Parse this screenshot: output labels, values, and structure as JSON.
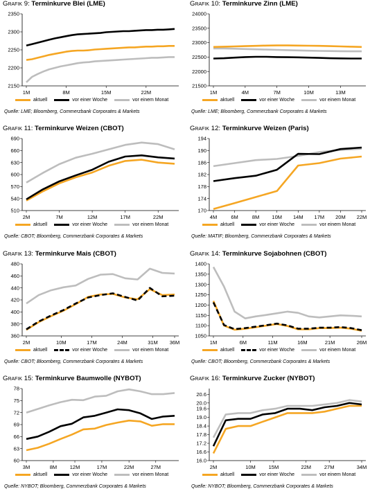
{
  "chart_data": [
    {
      "type": "line",
      "grafik_label": "Grafik 9:",
      "title": "Terminkurve Blei (LME)",
      "source": "Quelle: LME; Bloomberg, Commerzbank Corporates & Markets",
      "categories": [
        "1M",
        "2M",
        "3M",
        "4M",
        "5M",
        "6M",
        "7M",
        "8M",
        "9M",
        "10M",
        "11M",
        "12M",
        "13M",
        "14M",
        "15M",
        "16M",
        "17M",
        "18M",
        "19M",
        "20M",
        "21M",
        "22M",
        "23M",
        "24M",
        "25M",
        "26M",
        "27M"
      ],
      "xticks": [
        "1M",
        "8M",
        "15M",
        "22M"
      ],
      "ylim": [
        2150,
        2350
      ],
      "yticks": [
        2150,
        2200,
        2250,
        2300,
        2350
      ],
      "series": [
        {
          "name": "aktuell",
          "color": "#F5A623",
          "style": "solid",
          "values": [
            2222,
            2224,
            2228,
            2232,
            2236,
            2239,
            2242,
            2245,
            2247,
            2248,
            2248,
            2249,
            2251,
            2252,
            2253,
            2254,
            2255,
            2256,
            2257,
            2257,
            2258,
            2259,
            2259,
            2260,
            2260,
            2261,
            2261
          ]
        },
        {
          "name": "vor einer Woche",
          "color": "#000000",
          "style": "solid",
          "values": [
            2262,
            2266,
            2270,
            2274,
            2278,
            2282,
            2285,
            2288,
            2291,
            2293,
            2294,
            2295,
            2296,
            2297,
            2299,
            2300,
            2301,
            2302,
            2302,
            2303,
            2304,
            2305,
            2305,
            2306,
            2306,
            2307,
            2308
          ]
        },
        {
          "name": "vor einem Monat",
          "color": "#BDBDBD",
          "style": "solid",
          "values": [
            2160,
            2175,
            2183,
            2190,
            2196,
            2200,
            2204,
            2207,
            2210,
            2213,
            2215,
            2216,
            2218,
            2219,
            2220,
            2221,
            2222,
            2223,
            2224,
            2225,
            2226,
            2227,
            2228,
            2228,
            2229,
            2230,
            2230
          ]
        }
      ]
    },
    {
      "type": "line",
      "grafik_label": "Grafik 10:",
      "title": "Terminkurve Zinn (LME)",
      "source": "Quelle: LME; Bloomberg, Commerzbank Corporates & Markets",
      "categories": [
        "1M",
        "2M",
        "3M",
        "4M",
        "5M",
        "6M",
        "7M",
        "8M",
        "9M",
        "10M",
        "11M",
        "12M",
        "13M",
        "14M",
        "15M"
      ],
      "xticks": [
        "1M",
        "4M",
        "7M",
        "10M",
        "13M"
      ],
      "ylim": [
        21500,
        24000
      ],
      "yticks": [
        21500,
        22000,
        22500,
        23000,
        23500,
        24000
      ],
      "series": [
        {
          "name": "aktuell",
          "color": "#F5A623",
          "style": "solid",
          "values": [
            22850,
            22860,
            22870,
            22880,
            22890,
            22900,
            22905,
            22905,
            22900,
            22895,
            22890,
            22880,
            22870,
            22860,
            22850
          ]
        },
        {
          "name": "vor einer Woche",
          "color": "#000000",
          "style": "solid",
          "values": [
            22450,
            22460,
            22480,
            22500,
            22510,
            22510,
            22500,
            22495,
            22490,
            22480,
            22470,
            22460,
            22455,
            22450,
            22450
          ]
        },
        {
          "name": "vor einem Monat",
          "color": "#BDBDBD",
          "style": "solid",
          "values": [
            22800,
            22800,
            22790,
            22780,
            22770,
            22760,
            22750,
            22740,
            22730,
            22720,
            22715,
            22710,
            22705,
            22700,
            22700
          ]
        }
      ]
    },
    {
      "type": "line",
      "grafik_label": "Grafik 11:",
      "title": "Terminkurve Weizen (CBOT)",
      "source": "Quelle: CBOT; Bloomberg, Commerzbank Corporates & Markets",
      "categories": [
        "2M",
        "4.5M",
        "7M",
        "9.5M",
        "12M",
        "14.5M",
        "17M",
        "19.5M",
        "22M",
        "24.5M"
      ],
      "xticks": [
        "2M",
        "7M",
        "12M",
        "17M",
        "22M"
      ],
      "ylim": [
        510,
        690
      ],
      "yticks": [
        510,
        540,
        570,
        600,
        630,
        660,
        690
      ],
      "series": [
        {
          "name": "aktuell",
          "color": "#F5A623",
          "style": "solid",
          "values": [
            535,
            558,
            578,
            593,
            605,
            622,
            634,
            637,
            630,
            627
          ]
        },
        {
          "name": "vor einer Woche",
          "color": "#000000",
          "style": "solid",
          "values": [
            538,
            563,
            583,
            598,
            612,
            632,
            645,
            648,
            643,
            640
          ]
        },
        {
          "name": "vor einem Monat",
          "color": "#BDBDBD",
          "style": "solid",
          "values": [
            580,
            604,
            626,
            642,
            652,
            663,
            674,
            680,
            676,
            663
          ]
        }
      ]
    },
    {
      "type": "line",
      "grafik_label": "Grafik 12:",
      "title": "Terminkurve Weizen (Paris)",
      "source": "Quelle: MATIF; Bloomberg, Commerzbank Corporates & Markets",
      "categories": [
        "4M",
        "6M",
        "8M",
        "10M",
        "14M",
        "17M",
        "20M",
        "22M"
      ],
      "xticks": [
        "4M",
        "6M",
        "8M",
        "10M",
        "14M",
        "17M",
        "20M",
        "22M"
      ],
      "ylim": [
        170,
        194
      ],
      "yticks": [
        170,
        174,
        178,
        182,
        186,
        190,
        194
      ],
      "series": [
        {
          "name": "aktuell",
          "color": "#F5A623",
          "style": "solid",
          "values": [
            170.5,
            172.5,
            174.5,
            176.5,
            185.0,
            185.8,
            187.3,
            188.0
          ]
        },
        {
          "name": "vor einer Woche",
          "color": "#000000",
          "style": "solid",
          "values": [
            179.8,
            180.8,
            181.6,
            183.6,
            188.9,
            188.8,
            190.5,
            191.0
          ]
        },
        {
          "name": "vor einem Monat",
          "color": "#BDBDBD",
          "style": "solid",
          "values": [
            184.8,
            185.8,
            186.8,
            187.2,
            188.2,
            189.5,
            190.2,
            190.6
          ]
        }
      ]
    },
    {
      "type": "line",
      "grafik_label": "Grafik 13:",
      "title": "Terminkurve Mais (CBOT)",
      "source": "Quelle: CBOT; Bloomberg, Commerzbank Corporates & Markets",
      "categories": [
        "2M",
        "4.8M",
        "7.6M",
        "10.5M",
        "13.3M",
        "16.1M",
        "18.9M",
        "21.7M",
        "24.6M",
        "27.4M",
        "30.2M",
        "33M",
        "36M"
      ],
      "xticks": [
        "2M",
        "10M",
        "17M",
        "24M",
        "31M",
        "36M"
      ],
      "ylim": [
        360,
        480
      ],
      "yticks": [
        360,
        380,
        400,
        420,
        440,
        460,
        480
      ],
      "series": [
        {
          "name": "aktuell",
          "color": "#F5A623",
          "style": "solid",
          "values": [
            370,
            383,
            393,
            402,
            413,
            425,
            429,
            430,
            424,
            421,
            438,
            428,
            429
          ]
        },
        {
          "name": "vor einer Woche",
          "color": "#000000",
          "style": "dashed",
          "values": [
            371,
            384,
            394,
            403,
            414,
            424,
            428,
            431,
            425,
            419,
            440,
            426,
            427
          ]
        },
        {
          "name": "vor einem Monat",
          "color": "#BDBDBD",
          "style": "solid",
          "values": [
            414,
            428,
            436,
            441,
            444,
            455,
            462,
            463,
            456,
            454,
            472,
            465,
            464
          ]
        }
      ]
    },
    {
      "type": "line",
      "grafik_label": "Grafik 14:",
      "title": "Terminkurve Sojabohnen (CBOT)",
      "source": "Quelle: CBOT; Bloomberg, Commerzbank Corporates & Markets",
      "categories": [
        "1M",
        "2.8M",
        "4.6M",
        "6.4M",
        "8.3M",
        "10.1M",
        "11.9M",
        "13.7M",
        "15.5M",
        "17.4M",
        "19.2M",
        "21M",
        "22.8M",
        "24.6M",
        "26M"
      ],
      "xticks": [
        "1M",
        "6M",
        "11M",
        "16M",
        "21M",
        "26M"
      ],
      "ylim": [
        1050,
        1400
      ],
      "yticks": [
        1050,
        1100,
        1150,
        1200,
        1250,
        1300,
        1350,
        1400
      ],
      "series": [
        {
          "name": "aktuell",
          "color": "#F5A623",
          "style": "solid",
          "values": [
            1220,
            1100,
            1080,
            1085,
            1092,
            1100,
            1108,
            1098,
            1082,
            1082,
            1088,
            1088,
            1090,
            1085,
            1075
          ]
        },
        {
          "name": "vor einer Woche",
          "color": "#000000",
          "style": "dashed",
          "values": [
            1213,
            1103,
            1083,
            1088,
            1095,
            1102,
            1110,
            1101,
            1085,
            1085,
            1090,
            1090,
            1093,
            1088,
            1078
          ]
        },
        {
          "name": "vor einem Monat",
          "color": "#BDBDBD",
          "style": "solid",
          "values": [
            1385,
            1290,
            1168,
            1135,
            1145,
            1152,
            1160,
            1168,
            1162,
            1145,
            1140,
            1145,
            1150,
            1148,
            1145
          ]
        }
      ]
    },
    {
      "type": "line",
      "grafik_label": "Grafik 15:",
      "title": "Terminkurve Baumwolle (NYBOT)",
      "source": "Quelle: NYBOT; Bloomberg, Commerzbank Corporates & Markets",
      "categories": [
        "3M",
        "5.1M",
        "7.2M",
        "9.3M",
        "11.5M",
        "13.6M",
        "15.7M",
        "17.8M",
        "19.9M",
        "22M",
        "24.2M",
        "26.3M",
        "28.4M",
        "30.5M"
      ],
      "xticks": [
        "3M",
        "8M",
        "12M",
        "17M",
        "22M",
        "27M"
      ],
      "ylim": [
        60,
        78
      ],
      "yticks": [
        60,
        63,
        66,
        69,
        72,
        75,
        78
      ],
      "series": [
        {
          "name": "aktuell",
          "color": "#F5A623",
          "style": "solid",
          "values": [
            62.6,
            63.2,
            64.2,
            65.4,
            66.5,
            67.8,
            68.0,
            68.9,
            69.5,
            70.0,
            69.8,
            68.7,
            69.1,
            69.1
          ]
        },
        {
          "name": "vor einer Woche",
          "color": "#000000",
          "style": "solid",
          "values": [
            65.4,
            66.0,
            67.2,
            68.6,
            69.2,
            70.8,
            71.2,
            72.0,
            72.8,
            72.6,
            71.8,
            70.4,
            71.0,
            71.2
          ]
        },
        {
          "name": "vor einem Monat",
          "color": "#BDBDBD",
          "style": "solid",
          "values": [
            72.0,
            72.9,
            73.8,
            74.6,
            75.2,
            75.1,
            76.0,
            76.2,
            77.3,
            77.8,
            77.3,
            76.6,
            76.6,
            76.9
          ]
        }
      ]
    },
    {
      "type": "line",
      "grafik_label": "Grafik 16:",
      "title": "Terminkurve Zucker (NYBOT)",
      "source": "Quelle: NYBOT; Bloomberg, Commerzbank Corporates & Markets",
      "categories": [
        "2M",
        "4.7M",
        "7.3M",
        "10M",
        "12.7M",
        "15.3M",
        "18M",
        "20.7M",
        "23.3M",
        "26M",
        "28.7M",
        "31.3M",
        "34M"
      ],
      "xticks": [
        "2M",
        "10M",
        "15M",
        "22M",
        "27M",
        "34M"
      ],
      "ylim": [
        16.0,
        21.0
      ],
      "yticks": [
        16.0,
        16.6,
        17.2,
        17.8,
        18.4,
        19.0,
        19.6,
        20.0,
        20.6
      ],
      "series": [
        {
          "name": "aktuell",
          "color": "#F5A623",
          "style": "solid",
          "values": [
            16.5,
            18.2,
            18.4,
            18.4,
            18.7,
            19.0,
            19.3,
            19.3,
            19.3,
            19.4,
            19.6,
            19.8,
            19.8
          ]
        },
        {
          "name": "vor einer Woche",
          "color": "#000000",
          "style": "solid",
          "values": [
            17.0,
            18.8,
            18.9,
            18.9,
            19.2,
            19.3,
            19.6,
            19.6,
            19.5,
            19.7,
            19.8,
            20.0,
            19.9
          ]
        },
        {
          "name": "vor einem Monat",
          "color": "#BDBDBD",
          "style": "solid",
          "values": [
            17.6,
            19.2,
            19.3,
            19.3,
            19.5,
            19.6,
            19.8,
            19.8,
            19.8,
            19.9,
            20.0,
            20.2,
            20.1
          ]
        }
      ]
    }
  ]
}
